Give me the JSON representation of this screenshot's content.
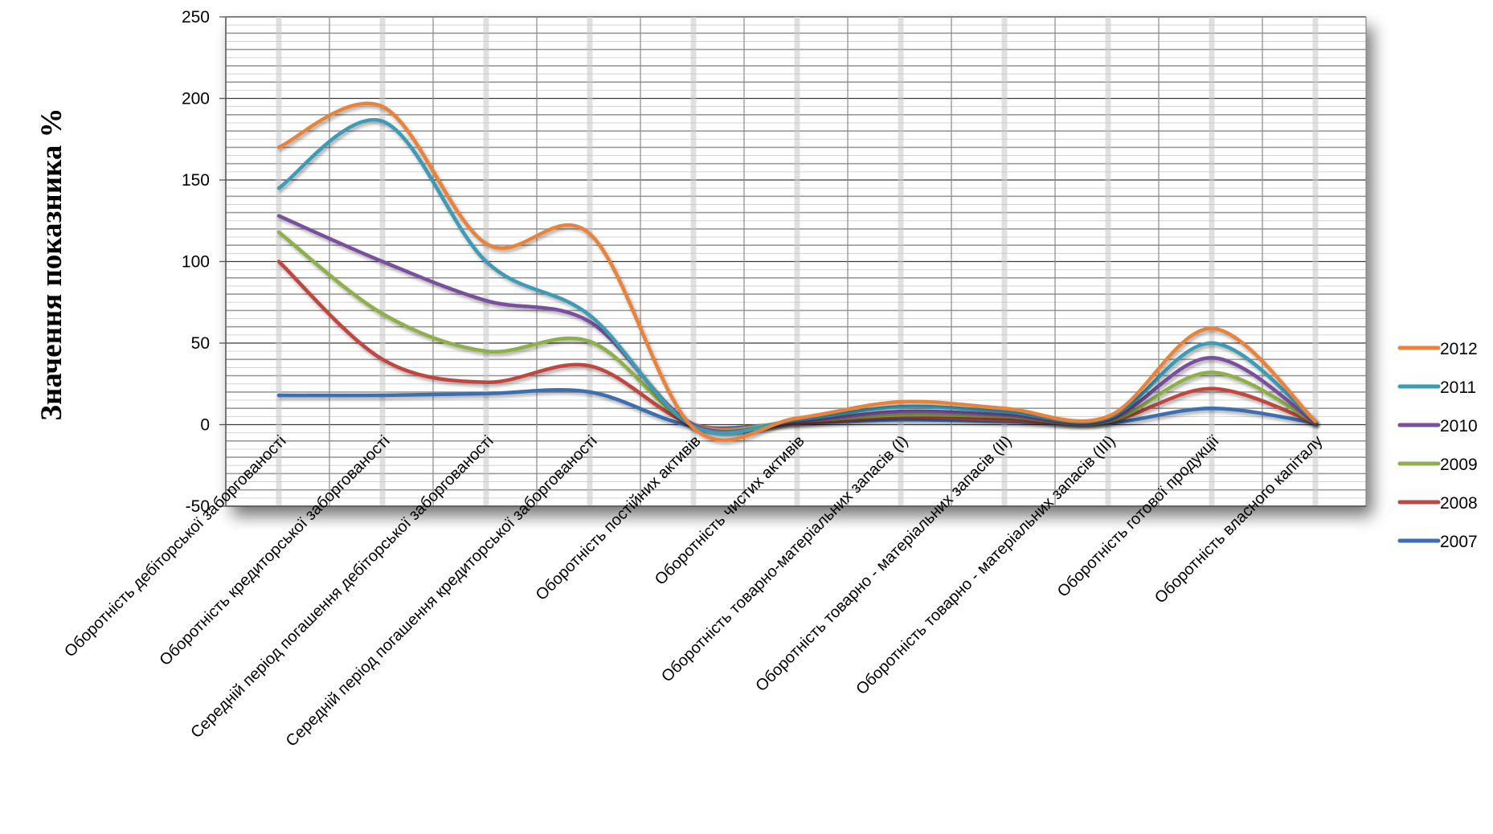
{
  "chart_data": {
    "type": "line",
    "title": "",
    "xlabel": "",
    "ylabel": "Значення показника %",
    "ylim": [
      -50,
      250
    ],
    "yticks": [
      -50,
      0,
      50,
      100,
      150,
      200,
      250
    ],
    "grid": true,
    "smooth": true,
    "legend_position": "right",
    "categories": [
      "Оборотність дебіторської заборгованості",
      "Оборотність кредиторської заборгованості",
      "Середній період погашення дебіторської заборгованості",
      "Середній період погашення кредиторської заборгованості",
      "Оборотність постійних активів",
      "Оборотність чистих активів",
      "Оборотність товарно-матеріальних запасів (I)",
      "Оборотність товарно - матеріальних запасів (II)",
      "Оборотність товарно - матеріальних запасів (III)",
      "Оборотність готової продукції",
      "Оборотність власного капіталу"
    ],
    "series": [
      {
        "name": "2012",
        "color": "#E8833A",
        "values": [
          170,
          195,
          111,
          117,
          -2,
          4,
          14,
          10,
          5,
          59,
          2
        ]
      },
      {
        "name": "2011",
        "color": "#3E9BB5",
        "values": [
          145,
          186,
          100,
          67,
          -1,
          3,
          11,
          8,
          4,
          50,
          2
        ]
      },
      {
        "name": "2010",
        "color": "#7A4F9E",
        "values": [
          128,
          100,
          76,
          63,
          0,
          2,
          8,
          6,
          3,
          41,
          1
        ]
      },
      {
        "name": "2009",
        "color": "#8DB04A",
        "values": [
          118,
          68,
          45,
          51,
          0,
          2,
          6,
          5,
          2,
          32,
          1
        ]
      },
      {
        "name": "2008",
        "color": "#BF4641",
        "values": [
          100,
          40,
          26,
          36,
          0,
          1,
          5,
          3,
          2,
          22,
          1
        ]
      },
      {
        "name": "2007",
        "color": "#3E6EB0",
        "values": [
          18,
          18,
          19,
          20,
          -1,
          1,
          3,
          2,
          1,
          10,
          1
        ]
      }
    ]
  }
}
